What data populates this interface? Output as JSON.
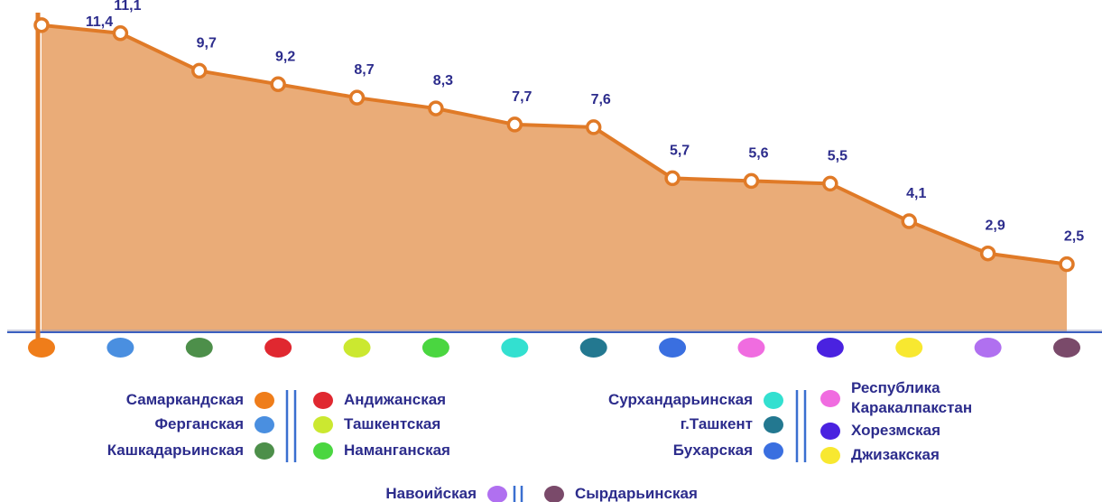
{
  "chart_data": {
    "type": "area",
    "categories": [
      "Самаркандская",
      "Ферганская",
      "Кашкадарьинская",
      "Андижанская",
      "Ташкентская",
      "Наманганская",
      "Сурхандарьинская",
      "г.Ташкент",
      "Бухарская",
      "Республика Каракалпакстан",
      "Хорезмская",
      "Джизакская",
      "Навоийская",
      "Сырдарьинская"
    ],
    "category_colors": [
      "#ef7d1a",
      "#4a8fe0",
      "#4d8f4a",
      "#e02830",
      "#cbe830",
      "#4ad640",
      "#33e0d0",
      "#237890",
      "#3a6fe0",
      "#f06ce0",
      "#4a22e0",
      "#f8e830",
      "#b070f0",
      "#7a4a6a"
    ],
    "values": [
      11.4,
      11.1,
      9.7,
      9.2,
      8.7,
      8.3,
      7.7,
      7.6,
      5.7,
      5.6,
      5.5,
      4.1,
      2.9,
      2.5
    ],
    "value_labels": [
      "11,4",
      "11,1",
      "9,7",
      "9,2",
      "8,7",
      "8,3",
      "7,7",
      "7,6",
      "5,7",
      "5,6",
      "5,5",
      "4,1",
      "2,9",
      "2,5"
    ],
    "color": "#e07a27",
    "fill": "#eaac78",
    "ylim": [
      0,
      12
    ]
  }
}
